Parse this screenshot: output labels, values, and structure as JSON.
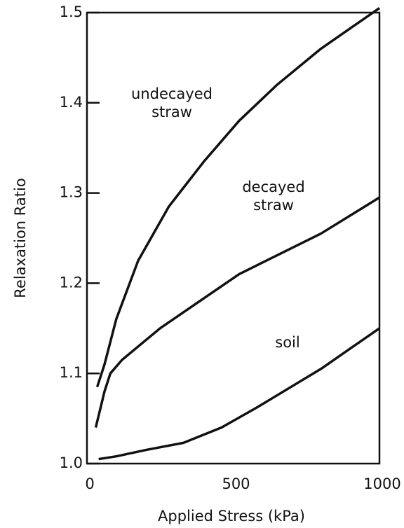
{
  "chart_data": {
    "type": "line",
    "xlabel": "Applied Stress (kPa)",
    "ylabel": "Relaxation Ratio",
    "xlim": [
      0,
      1000
    ],
    "xticks": [
      0,
      500,
      1000
    ],
    "ylim": [
      1.0,
      1.5
    ],
    "yticks": [
      {
        "value": 1.0,
        "label": "1.0"
      },
      1.1,
      1.2,
      1.3,
      1.4,
      1.5
    ],
    "series": [
      {
        "name": "undecayed straw",
        "color": "#111111",
        "x": [
          35,
          60,
          100,
          175,
          280,
          400,
          520,
          650,
          800,
          1000
        ],
        "values": [
          1.085,
          1.11,
          1.16,
          1.225,
          1.285,
          1.335,
          1.38,
          1.42,
          1.46,
          1.505
        ]
      },
      {
        "name": "decayed straw",
        "color": "#111111",
        "x": [
          30,
          60,
          80,
          120,
          250,
          520,
          800,
          1000
        ],
        "values": [
          1.04,
          1.08,
          1.1,
          1.115,
          1.15,
          1.21,
          1.255,
          1.295
        ]
      },
      {
        "name": "soil",
        "color": "#111111",
        "x": [
          40,
          100,
          200,
          330,
          460,
          580,
          800,
          1000
        ],
        "values": [
          1.005,
          1.008,
          1.015,
          1.023,
          1.04,
          1.062,
          1.105,
          1.15
        ]
      }
    ]
  }
}
